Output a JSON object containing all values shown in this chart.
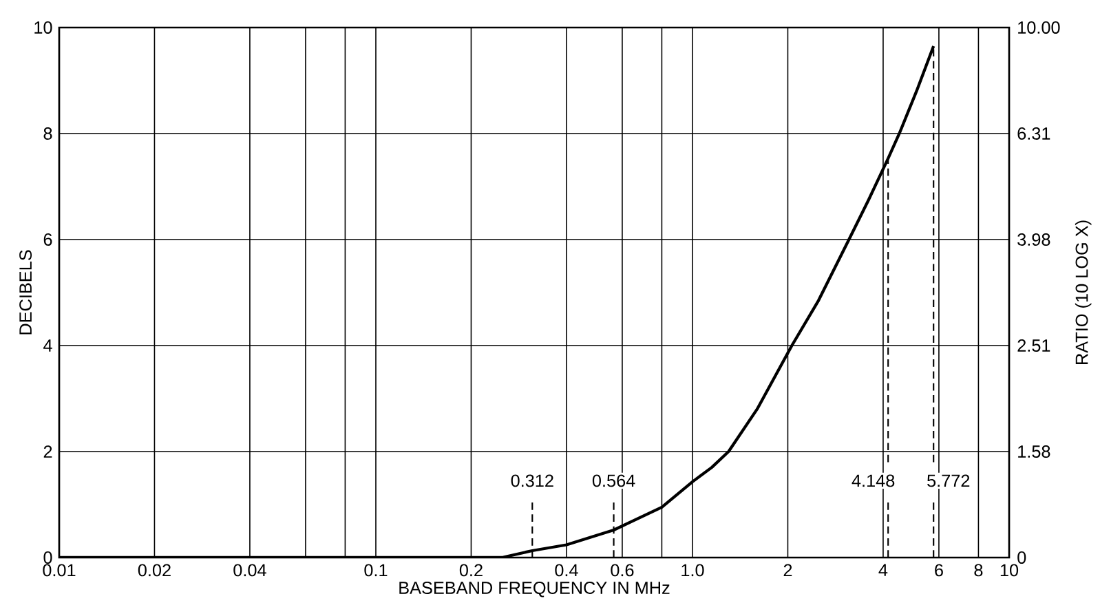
{
  "chart_data": {
    "type": "line",
    "xlabel": "BASEBAND FREQUENCY IN MHz",
    "ylabel": "DECIBELS",
    "y2label": "RATIO (10 LOG X)",
    "log": "x",
    "grid": true,
    "color": "#000000",
    "x": [
      0.01,
      0.25,
      0.312,
      0.4,
      0.564,
      0.8,
      1.0,
      1.15,
      1.3,
      1.6,
      2.06,
      2.5,
      3.12,
      3.6,
      4.148,
      4.5,
      5.1,
      5.772
    ],
    "values": [
      0,
      0,
      0.13,
      0.24,
      0.52,
      0.95,
      1.43,
      1.7,
      2.0,
      2.8,
      4.0,
      4.85,
      6.0,
      6.75,
      7.53,
      8.0,
      8.8,
      9.65
    ],
    "xlim": [
      0.01,
      10
    ],
    "ylim": [
      0,
      10
    ],
    "xticks": [
      0.01,
      0.02,
      0.04,
      {
        "value": 0.06,
        "label": null
      },
      {
        "value": 0.08,
        "label": null
      },
      0.1,
      0.2,
      0.4,
      0.6,
      {
        "value": 0.8,
        "label": null
      },
      {
        "value": 1,
        "label": "1.0"
      },
      2,
      4,
      6,
      8,
      10
    ],
    "yticks": [
      0,
      2,
      4,
      6,
      8,
      10
    ],
    "annotations": [
      "0",
      "1.58",
      "2.51",
      "3.98",
      "6.31",
      "10.00"
    ],
    "ref_lines": [
      {
        "axis": "x",
        "value": 0.312,
        "label": "0.312",
        "line_style": "dashed"
      },
      {
        "axis": "x",
        "value": 0.564,
        "label": "0.564",
        "line_style": "dashed"
      },
      {
        "axis": "x",
        "value": 4.148,
        "label": "4.148",
        "line_style": "dashed"
      },
      {
        "axis": "x",
        "value": 5.772,
        "label": "5.772",
        "line_style": "dashed"
      }
    ]
  }
}
